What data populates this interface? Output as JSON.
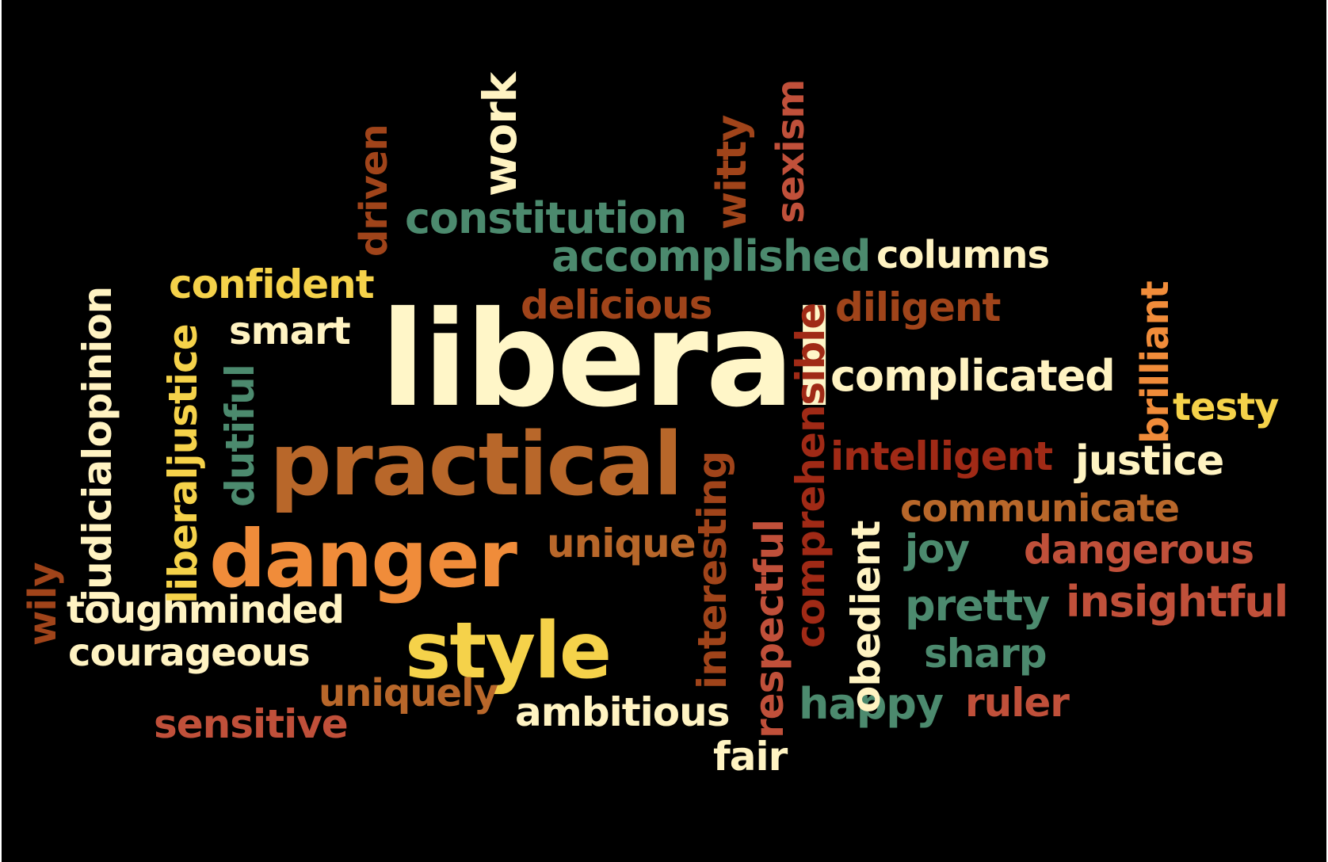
{
  "words": {
    "liberal": "liberal",
    "practical": "practical",
    "danger": "danger",
    "style": "style",
    "constitution": "constitution",
    "accomplished": "accomplished",
    "columns": "columns",
    "confident": "confident",
    "delicious": "delicious",
    "diligent": "diligent",
    "smart": "smart",
    "complicated": "complicated",
    "testy": "testy",
    "intelligent": "intelligent",
    "justice": "justice",
    "communicate": "communicate",
    "unique": "unique",
    "joy": "joy",
    "dangerous": "dangerous",
    "insightful": "insightful",
    "pretty": "pretty",
    "toughminded": "toughminded",
    "courageous": "courageous",
    "sharp": "sharp",
    "uniquely": "uniquely",
    "happy": "happy",
    "ruler": "ruler",
    "ambitious": "ambitious",
    "sensitive": "sensitive",
    "fair": "fair",
    "work": "work",
    "driven": "driven",
    "witty": "witty",
    "sexism": "sexism",
    "judicialopinion": "judicialopinion",
    "liberaljustice": "liberaljustice",
    "dutiful": "dutiful",
    "comprehensible": "comprehensible",
    "interesting": "interesting",
    "respectful": "respectful",
    "obedient": "obedient",
    "brilliant": "brilliant",
    "wily": "wily"
  },
  "colors": {
    "background": "#000000",
    "cream": "#FFF3C2",
    "yellow": "#F5D24A",
    "teal": "#4C8A6E",
    "brown": "#A0441A",
    "rust": "#C0503A",
    "dark_red": "#A02A16",
    "orange": "#F08C3A",
    "tan": "#B8672A"
  }
}
